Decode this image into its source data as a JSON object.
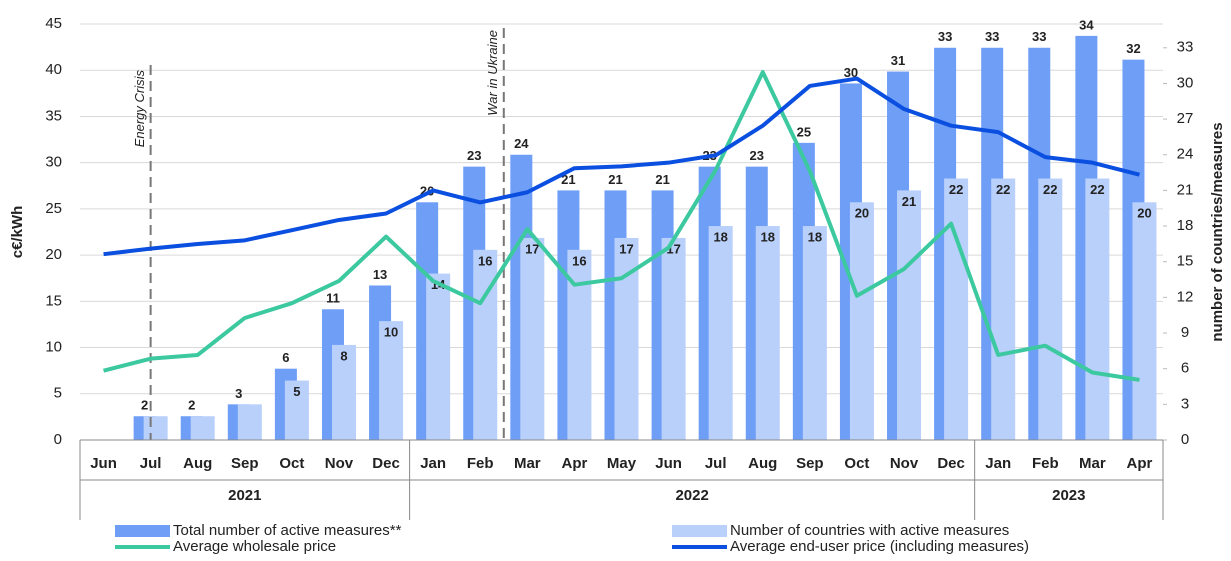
{
  "chart_data": {
    "type": "bar-line",
    "y_label": "c€/kWh",
    "y2_label": "number of countries/measures",
    "category_groups": [
      {
        "label": "2021",
        "categories": [
          "Jun",
          "Jul",
          "Aug",
          "Sep",
          "Oct",
          "Nov",
          "Dec"
        ]
      },
      {
        "label": "2022",
        "categories": [
          "Jan",
          "Feb",
          "Mar",
          "Apr",
          "May",
          "Jun",
          "Jul",
          "Aug",
          "Sep",
          "Oct",
          "Nov",
          "Dec"
        ]
      },
      {
        "label": "2023",
        "categories": [
          "Jan",
          "Feb",
          "Mar",
          "Apr"
        ]
      }
    ],
    "series": [
      {
        "name": "Total number of active measures**",
        "type": "bar",
        "axis": "y2",
        "color": "#6f9ef7",
        "values": [
          null,
          2,
          2,
          3,
          6,
          11,
          13,
          20,
          23,
          24,
          21,
          21,
          21,
          23,
          23,
          25,
          30,
          31,
          33,
          33,
          33,
          34,
          32
        ]
      },
      {
        "name": "Number of countries with active measures",
        "type": "bar",
        "axis": "y2",
        "color": "#b9d0fb",
        "values": [
          null,
          2,
          2,
          3,
          5,
          8,
          10,
          14,
          16,
          17,
          16,
          17,
          17,
          18,
          18,
          18,
          20,
          21,
          22,
          22,
          22,
          22,
          20
        ]
      },
      {
        "name": "Average wholesale price",
        "type": "line",
        "color": "#3cc9a0",
        "values": [
          7.5,
          8.8,
          9.2,
          13.2,
          14.8,
          17.2,
          22,
          17.2,
          14.8,
          22.8,
          16.8,
          17.5,
          20.8,
          29.2,
          39.8,
          29.1,
          15.6,
          18.5,
          23.4,
          9.2,
          10.2,
          7.3,
          6.5
        ]
      },
      {
        "name": "Average end-user price (including measures)",
        "type": "line",
        "color": "#0a4fe0",
        "values": [
          20.1,
          20.7,
          21.2,
          21.6,
          22.7,
          23.8,
          24.5,
          27,
          25.7,
          26.8,
          29.4,
          29.6,
          30,
          30.8,
          34,
          38.3,
          39.1,
          35.8,
          34,
          33.3,
          30.6,
          30,
          28.7
        ]
      }
    ],
    "annotations": [
      {
        "text": "Energy Crisis",
        "at": 1
      },
      {
        "text": "War in Ukraine",
        "at": 8.5
      }
    ],
    "ylim": [
      0,
      45
    ],
    "yticks": [
      0,
      5,
      10,
      15,
      20,
      25,
      30,
      35,
      40,
      45
    ],
    "y2lim": [
      0,
      35
    ],
    "y2ticks": [
      0,
      3,
      6,
      9,
      12,
      15,
      18,
      21,
      24,
      27,
      30,
      33
    ],
    "grid": true
  }
}
